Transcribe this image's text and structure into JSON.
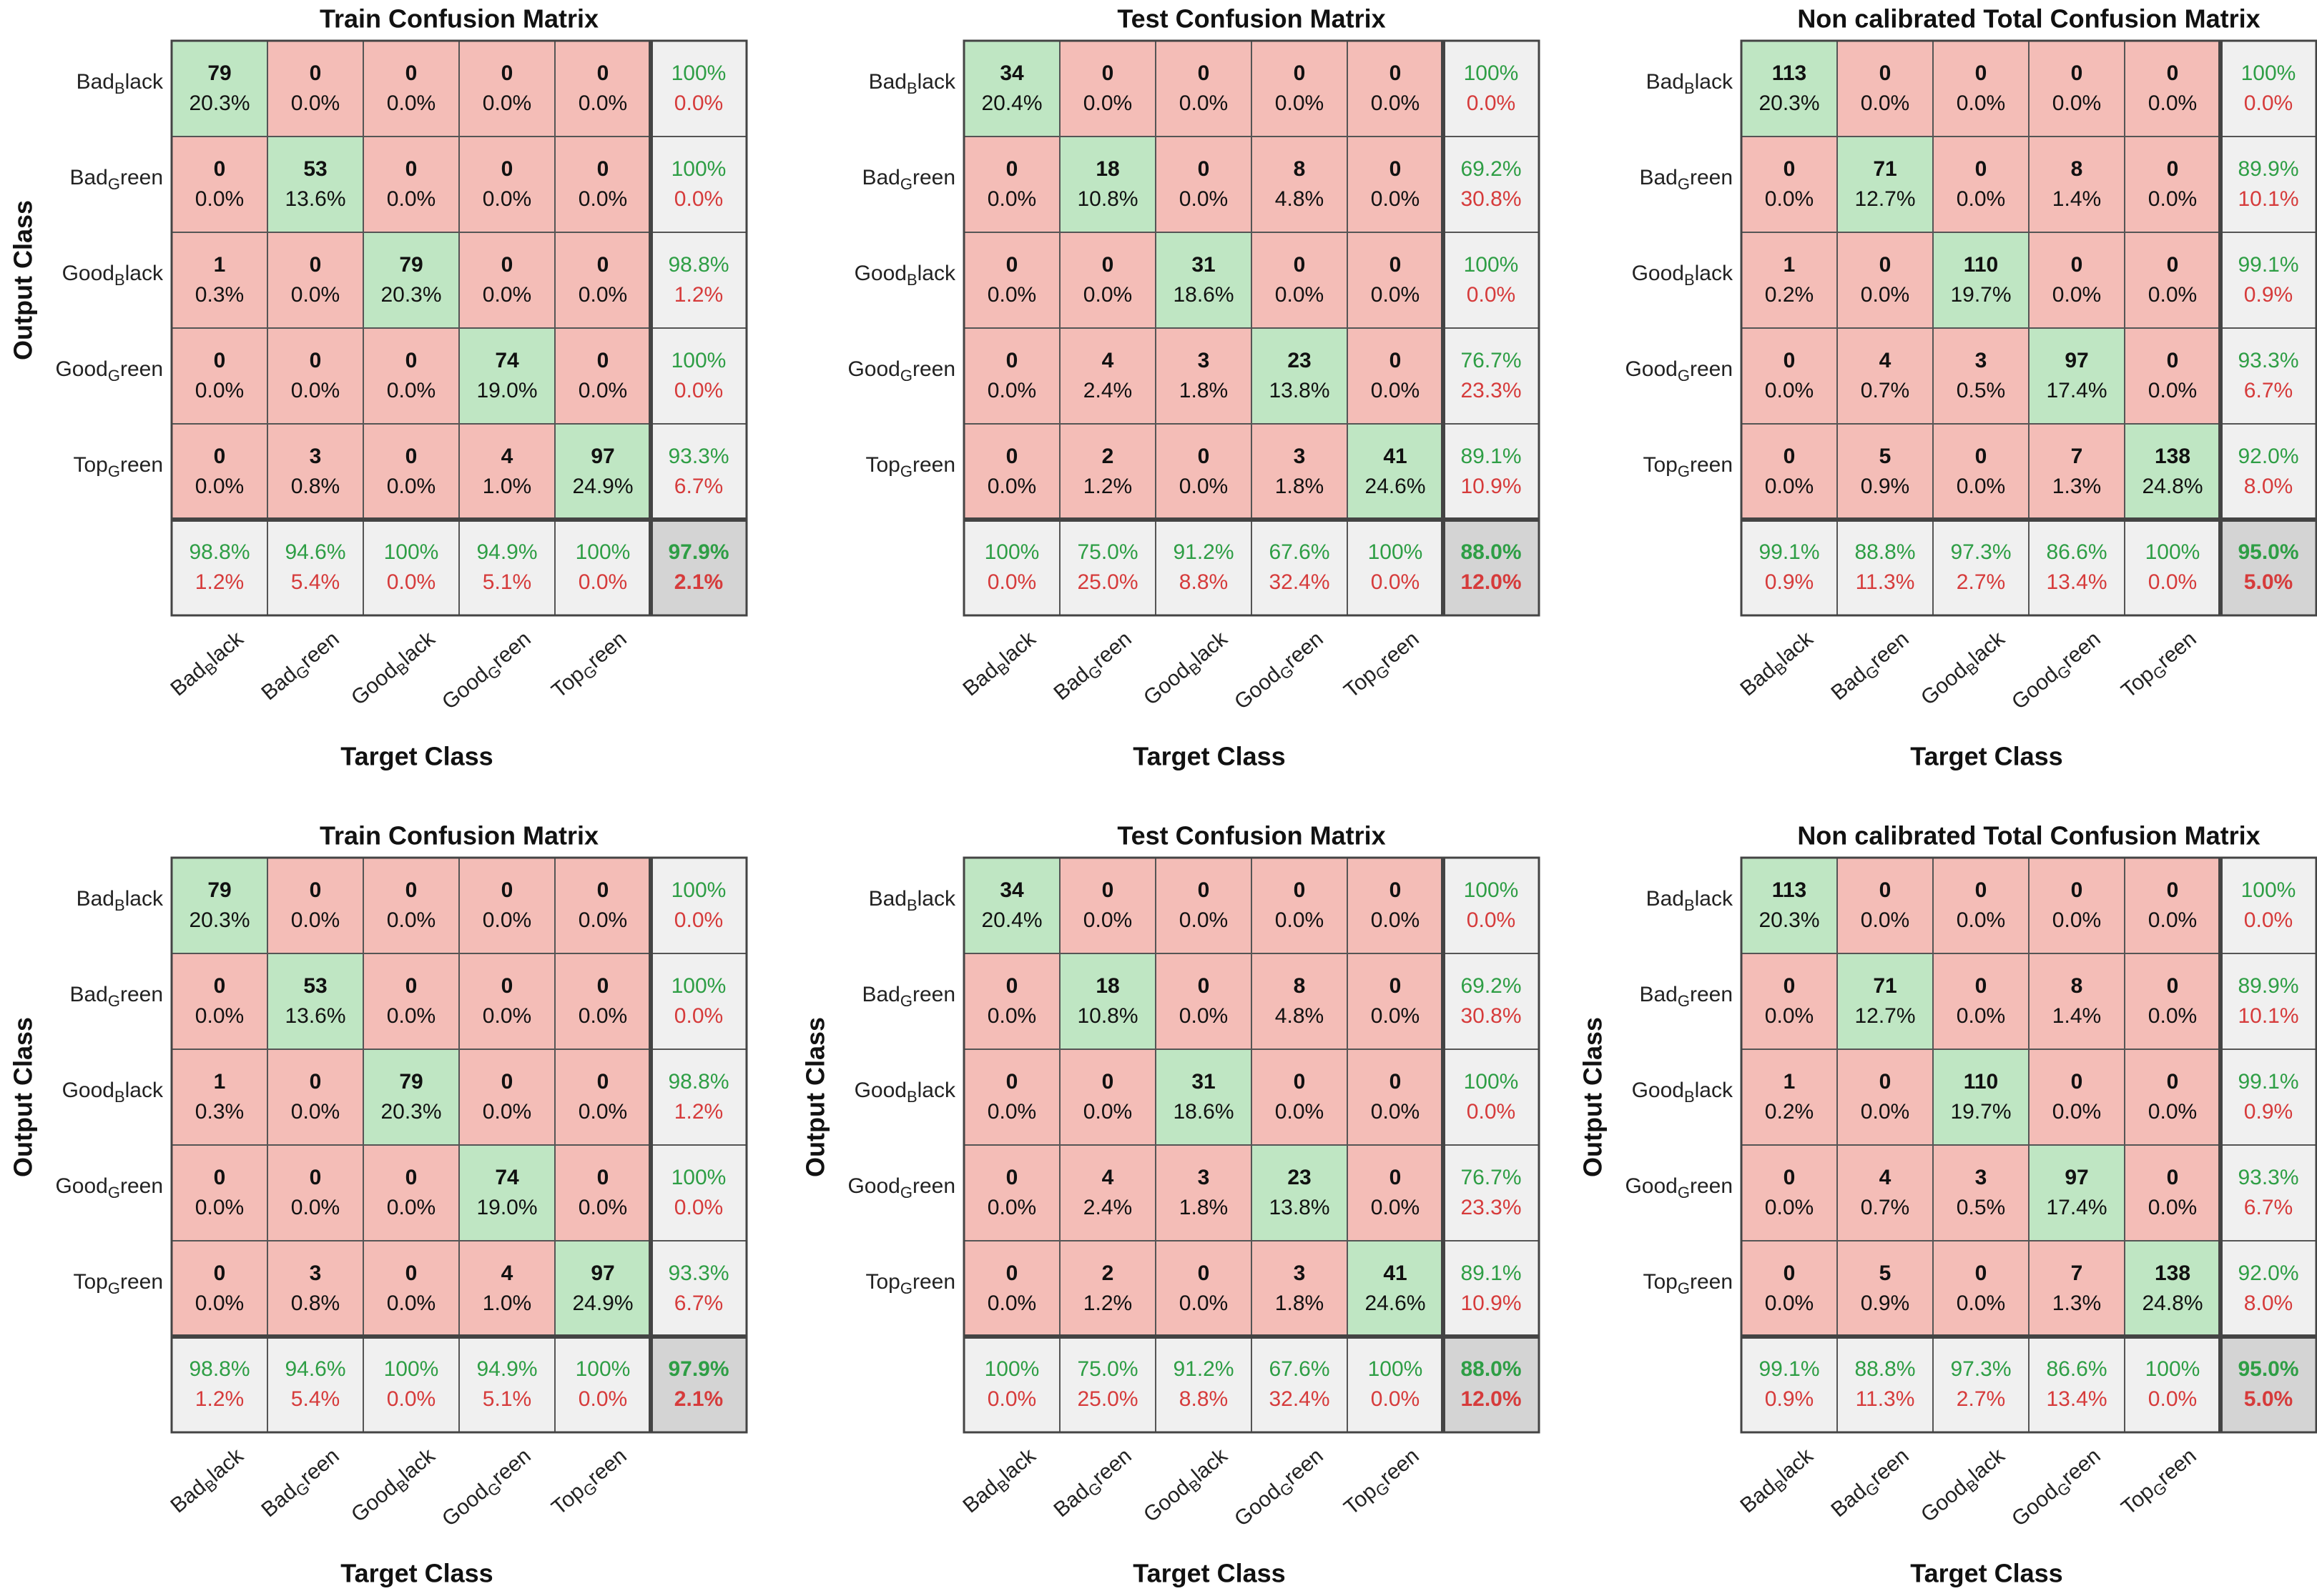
{
  "colors": {
    "diag": "#bfe6c3",
    "offdiag": "#f4bdb7",
    "summary": "#f0f0f0",
    "overall": "#d4d4d4",
    "correct_text": "#2e9e45",
    "error_text": "#d63b3b",
    "count_text": "#111111",
    "border": "#555555"
  },
  "chart_data": [
    {
      "type": "heatmap",
      "title": "Train Confusion Matrix",
      "xlabel": "Target Class",
      "ylabel": "Output Class",
      "classes": [
        {
          "base": "Bad",
          "sub": "B",
          "rest": "lack"
        },
        {
          "base": "Bad",
          "sub": "G",
          "rest": "reen"
        },
        {
          "base": "Good",
          "sub": "B",
          "rest": "lack"
        },
        {
          "base": "Good",
          "sub": "G",
          "rest": "reen"
        },
        {
          "base": "Top",
          "sub": "G",
          "rest": "reen"
        }
      ],
      "counts": [
        [
          79,
          0,
          0,
          0,
          0
        ],
        [
          0,
          53,
          0,
          0,
          0
        ],
        [
          1,
          0,
          79,
          0,
          0
        ],
        [
          0,
          0,
          0,
          74,
          0
        ],
        [
          0,
          3,
          0,
          4,
          97
        ]
      ],
      "percents": [
        [
          "20.3%",
          "0.0%",
          "0.0%",
          "0.0%",
          "0.0%"
        ],
        [
          "0.0%",
          "13.6%",
          "0.0%",
          "0.0%",
          "0.0%"
        ],
        [
          "0.3%",
          "0.0%",
          "20.3%",
          "0.0%",
          "0.0%"
        ],
        [
          "0.0%",
          "0.0%",
          "0.0%",
          "19.0%",
          "0.0%"
        ],
        [
          "0.0%",
          "0.8%",
          "0.0%",
          "1.0%",
          "24.9%"
        ]
      ],
      "row_summary": [
        [
          "100%",
          "0.0%"
        ],
        [
          "100%",
          "0.0%"
        ],
        [
          "98.8%",
          "1.2%"
        ],
        [
          "100%",
          "0.0%"
        ],
        [
          "93.3%",
          "6.7%"
        ]
      ],
      "col_summary": [
        [
          "98.8%",
          "1.2%"
        ],
        [
          "94.6%",
          "5.4%"
        ],
        [
          "100%",
          "0.0%"
        ],
        [
          "94.9%",
          "5.1%"
        ],
        [
          "100%",
          "0.0%"
        ]
      ],
      "overall": [
        "97.9%",
        "2.1%"
      ],
      "show_ylabel": true
    },
    {
      "type": "heatmap",
      "title": "Test Confusion Matrix",
      "xlabel": "Target Class",
      "ylabel": "Output Class",
      "classes": [
        {
          "base": "Bad",
          "sub": "B",
          "rest": "lack"
        },
        {
          "base": "Bad",
          "sub": "G",
          "rest": "reen"
        },
        {
          "base": "Good",
          "sub": "B",
          "rest": "lack"
        },
        {
          "base": "Good",
          "sub": "G",
          "rest": "reen"
        },
        {
          "base": "Top",
          "sub": "G",
          "rest": "reen"
        }
      ],
      "counts": [
        [
          34,
          0,
          0,
          0,
          0
        ],
        [
          0,
          18,
          0,
          8,
          0
        ],
        [
          0,
          0,
          31,
          0,
          0
        ],
        [
          0,
          4,
          3,
          23,
          0
        ],
        [
          0,
          2,
          0,
          3,
          41
        ]
      ],
      "percents": [
        [
          "20.4%",
          "0.0%",
          "0.0%",
          "0.0%",
          "0.0%"
        ],
        [
          "0.0%",
          "10.8%",
          "0.0%",
          "4.8%",
          "0.0%"
        ],
        [
          "0.0%",
          "0.0%",
          "18.6%",
          "0.0%",
          "0.0%"
        ],
        [
          "0.0%",
          "2.4%",
          "1.8%",
          "13.8%",
          "0.0%"
        ],
        [
          "0.0%",
          "1.2%",
          "0.0%",
          "1.8%",
          "24.6%"
        ]
      ],
      "row_summary": [
        [
          "100%",
          "0.0%"
        ],
        [
          "69.2%",
          "30.8%"
        ],
        [
          "100%",
          "0.0%"
        ],
        [
          "76.7%",
          "23.3%"
        ],
        [
          "89.1%",
          "10.9%"
        ]
      ],
      "col_summary": [
        [
          "100%",
          "0.0%"
        ],
        [
          "75.0%",
          "25.0%"
        ],
        [
          "91.2%",
          "8.8%"
        ],
        [
          "67.6%",
          "32.4%"
        ],
        [
          "100%",
          "0.0%"
        ]
      ],
      "overall": [
        "88.0%",
        "12.0%"
      ],
      "show_ylabel": false
    },
    {
      "type": "heatmap",
      "title": "Non calibrated Total Confusion Matrix",
      "xlabel": "Target Class",
      "ylabel": "Output Class",
      "classes": [
        {
          "base": "Bad",
          "sub": "B",
          "rest": "lack"
        },
        {
          "base": "Bad",
          "sub": "G",
          "rest": "reen"
        },
        {
          "base": "Good",
          "sub": "B",
          "rest": "lack"
        },
        {
          "base": "Good",
          "sub": "G",
          "rest": "reen"
        },
        {
          "base": "Top",
          "sub": "G",
          "rest": "reen"
        }
      ],
      "counts": [
        [
          113,
          0,
          0,
          0,
          0
        ],
        [
          0,
          71,
          0,
          8,
          0
        ],
        [
          1,
          0,
          110,
          0,
          0
        ],
        [
          0,
          4,
          3,
          97,
          0
        ],
        [
          0,
          5,
          0,
          7,
          138
        ]
      ],
      "percents": [
        [
          "20.3%",
          "0.0%",
          "0.0%",
          "0.0%",
          "0.0%"
        ],
        [
          "0.0%",
          "12.7%",
          "0.0%",
          "1.4%",
          "0.0%"
        ],
        [
          "0.2%",
          "0.0%",
          "19.7%",
          "0.0%",
          "0.0%"
        ],
        [
          "0.0%",
          "0.7%",
          "0.5%",
          "17.4%",
          "0.0%"
        ],
        [
          "0.0%",
          "0.9%",
          "0.0%",
          "1.3%",
          "24.8%"
        ]
      ],
      "row_summary": [
        [
          "100%",
          "0.0%"
        ],
        [
          "89.9%",
          "10.1%"
        ],
        [
          "99.1%",
          "0.9%"
        ],
        [
          "93.3%",
          "6.7%"
        ],
        [
          "92.0%",
          "8.0%"
        ]
      ],
      "col_summary": [
        [
          "99.1%",
          "0.9%"
        ],
        [
          "88.8%",
          "11.3%"
        ],
        [
          "97.3%",
          "2.7%"
        ],
        [
          "86.6%",
          "13.4%"
        ],
        [
          "100%",
          "0.0%"
        ]
      ],
      "overall": [
        "95.0%",
        "5.0%"
      ],
      "show_ylabel": false
    },
    {
      "type": "heatmap",
      "title": "Train Confusion Matrix",
      "xlabel": "Target Class",
      "ylabel": "Output Class",
      "classes": [
        {
          "base": "Bad",
          "sub": "B",
          "rest": "lack"
        },
        {
          "base": "Bad",
          "sub": "G",
          "rest": "reen"
        },
        {
          "base": "Good",
          "sub": "B",
          "rest": "lack"
        },
        {
          "base": "Good",
          "sub": "G",
          "rest": "reen"
        },
        {
          "base": "Top",
          "sub": "G",
          "rest": "reen"
        }
      ],
      "counts": [
        [
          79,
          0,
          0,
          0,
          0
        ],
        [
          0,
          53,
          0,
          0,
          0
        ],
        [
          1,
          0,
          79,
          0,
          0
        ],
        [
          0,
          0,
          0,
          74,
          0
        ],
        [
          0,
          3,
          0,
          4,
          97
        ]
      ],
      "percents": [
        [
          "20.3%",
          "0.0%",
          "0.0%",
          "0.0%",
          "0.0%"
        ],
        [
          "0.0%",
          "13.6%",
          "0.0%",
          "0.0%",
          "0.0%"
        ],
        [
          "0.3%",
          "0.0%",
          "20.3%",
          "0.0%",
          "0.0%"
        ],
        [
          "0.0%",
          "0.0%",
          "0.0%",
          "19.0%",
          "0.0%"
        ],
        [
          "0.0%",
          "0.8%",
          "0.0%",
          "1.0%",
          "24.9%"
        ]
      ],
      "row_summary": [
        [
          "100%",
          "0.0%"
        ],
        [
          "100%",
          "0.0%"
        ],
        [
          "98.8%",
          "1.2%"
        ],
        [
          "100%",
          "0.0%"
        ],
        [
          "93.3%",
          "6.7%"
        ]
      ],
      "col_summary": [
        [
          "98.8%",
          "1.2%"
        ],
        [
          "94.6%",
          "5.4%"
        ],
        [
          "100%",
          "0.0%"
        ],
        [
          "94.9%",
          "5.1%"
        ],
        [
          "100%",
          "0.0%"
        ]
      ],
      "overall": [
        "97.9%",
        "2.1%"
      ],
      "show_ylabel": true
    },
    {
      "type": "heatmap",
      "title": "Test Confusion Matrix",
      "xlabel": "Target Class",
      "ylabel": "Output Class",
      "classes": [
        {
          "base": "Bad",
          "sub": "B",
          "rest": "lack"
        },
        {
          "base": "Bad",
          "sub": "G",
          "rest": "reen"
        },
        {
          "base": "Good",
          "sub": "B",
          "rest": "lack"
        },
        {
          "base": "Good",
          "sub": "G",
          "rest": "reen"
        },
        {
          "base": "Top",
          "sub": "G",
          "rest": "reen"
        }
      ],
      "counts": [
        [
          34,
          0,
          0,
          0,
          0
        ],
        [
          0,
          18,
          0,
          8,
          0
        ],
        [
          0,
          0,
          31,
          0,
          0
        ],
        [
          0,
          4,
          3,
          23,
          0
        ],
        [
          0,
          2,
          0,
          3,
          41
        ]
      ],
      "percents": [
        [
          "20.4%",
          "0.0%",
          "0.0%",
          "0.0%",
          "0.0%"
        ],
        [
          "0.0%",
          "10.8%",
          "0.0%",
          "4.8%",
          "0.0%"
        ],
        [
          "0.0%",
          "0.0%",
          "18.6%",
          "0.0%",
          "0.0%"
        ],
        [
          "0.0%",
          "2.4%",
          "1.8%",
          "13.8%",
          "0.0%"
        ],
        [
          "0.0%",
          "1.2%",
          "0.0%",
          "1.8%",
          "24.6%"
        ]
      ],
      "row_summary": [
        [
          "100%",
          "0.0%"
        ],
        [
          "69.2%",
          "30.8%"
        ],
        [
          "100%",
          "0.0%"
        ],
        [
          "76.7%",
          "23.3%"
        ],
        [
          "89.1%",
          "10.9%"
        ]
      ],
      "col_summary": [
        [
          "100%",
          "0.0%"
        ],
        [
          "75.0%",
          "25.0%"
        ],
        [
          "91.2%",
          "8.8%"
        ],
        [
          "67.6%",
          "32.4%"
        ],
        [
          "100%",
          "0.0%"
        ]
      ],
      "overall": [
        "88.0%",
        "12.0%"
      ],
      "show_ylabel": true
    },
    {
      "type": "heatmap",
      "title": "Non calibrated Total Confusion Matrix",
      "xlabel": "Target Class",
      "ylabel": "Output Class",
      "classes": [
        {
          "base": "Bad",
          "sub": "B",
          "rest": "lack"
        },
        {
          "base": "Bad",
          "sub": "G",
          "rest": "reen"
        },
        {
          "base": "Good",
          "sub": "B",
          "rest": "lack"
        },
        {
          "base": "Good",
          "sub": "G",
          "rest": "reen"
        },
        {
          "base": "Top",
          "sub": "G",
          "rest": "reen"
        }
      ],
      "counts": [
        [
          113,
          0,
          0,
          0,
          0
        ],
        [
          0,
          71,
          0,
          8,
          0
        ],
        [
          1,
          0,
          110,
          0,
          0
        ],
        [
          0,
          4,
          3,
          97,
          0
        ],
        [
          0,
          5,
          0,
          7,
          138
        ]
      ],
      "percents": [
        [
          "20.3%",
          "0.0%",
          "0.0%",
          "0.0%",
          "0.0%"
        ],
        [
          "0.0%",
          "12.7%",
          "0.0%",
          "1.4%",
          "0.0%"
        ],
        [
          "0.2%",
          "0.0%",
          "19.7%",
          "0.0%",
          "0.0%"
        ],
        [
          "0.0%",
          "0.7%",
          "0.5%",
          "17.4%",
          "0.0%"
        ],
        [
          "0.0%",
          "0.9%",
          "0.0%",
          "1.3%",
          "24.8%"
        ]
      ],
      "row_summary": [
        [
          "100%",
          "0.0%"
        ],
        [
          "89.9%",
          "10.1%"
        ],
        [
          "99.1%",
          "0.9%"
        ],
        [
          "93.3%",
          "6.7%"
        ],
        [
          "92.0%",
          "8.0%"
        ]
      ],
      "col_summary": [
        [
          "99.1%",
          "0.9%"
        ],
        [
          "88.8%",
          "11.3%"
        ],
        [
          "97.3%",
          "2.7%"
        ],
        [
          "86.6%",
          "13.4%"
        ],
        [
          "100%",
          "0.0%"
        ]
      ],
      "overall": [
        "95.0%",
        "5.0%"
      ],
      "show_ylabel": true
    }
  ]
}
